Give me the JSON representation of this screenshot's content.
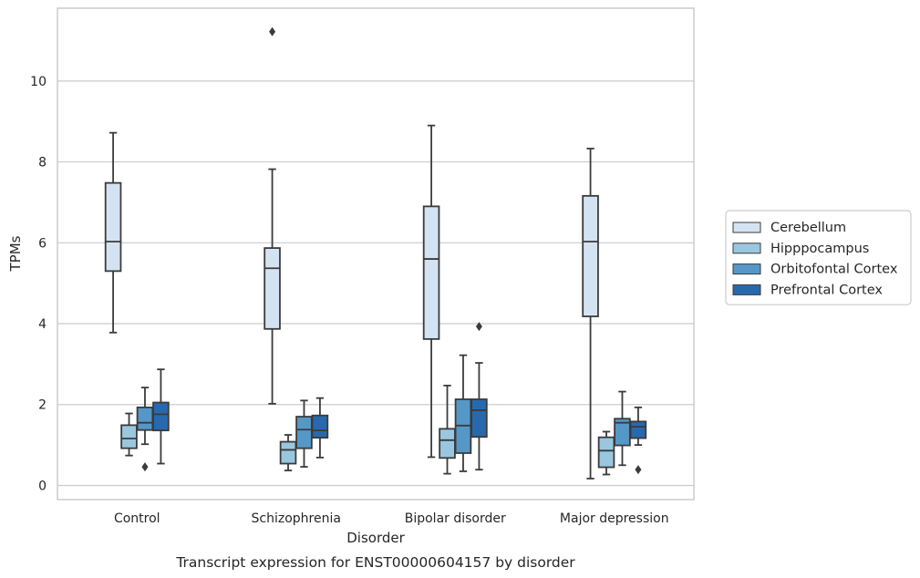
{
  "chart_data": {
    "type": "boxplot",
    "caption": "Transcript expression for ENST00000604157 by disorder",
    "xlabel": "Disorder",
    "ylabel": "TPMs",
    "ylim": [
      -0.35,
      11.8
    ],
    "yticks": [
      0,
      2,
      4,
      6,
      8,
      10
    ],
    "grid": "horizontal",
    "legend_position": "right",
    "categories": [
      "Control",
      "Schizophrenia",
      "Bipolar disorder",
      "Major depression"
    ],
    "series": [
      {
        "name": "Cerebellum",
        "color": "#d4e3f2",
        "boxes": [
          {
            "min": 3.78,
            "q1": 5.3,
            "median": 6.03,
            "q3": 7.48,
            "max": 8.72,
            "outliers": []
          },
          {
            "min": 2.02,
            "q1": 3.87,
            "median": 5.37,
            "q3": 5.87,
            "max": 7.82,
            "outliers": [
              11.22
            ]
          },
          {
            "min": 0.7,
            "q1": 3.62,
            "median": 5.6,
            "q3": 6.9,
            "max": 8.9,
            "outliers": []
          },
          {
            "min": 0.17,
            "q1": 4.18,
            "median": 6.03,
            "q3": 7.16,
            "max": 8.33,
            "outliers": []
          }
        ]
      },
      {
        "name": "Hipppocampus",
        "color": "#9ac7e0",
        "boxes": [
          {
            "min": 0.74,
            "q1": 0.92,
            "median": 1.16,
            "q3": 1.49,
            "max": 1.78,
            "outliers": []
          },
          {
            "min": 0.37,
            "q1": 0.54,
            "median": 0.88,
            "q3": 1.08,
            "max": 1.25,
            "outliers": []
          },
          {
            "min": 0.29,
            "q1": 0.68,
            "median": 1.12,
            "q3": 1.4,
            "max": 2.47,
            "outliers": []
          },
          {
            "min": 0.27,
            "q1": 0.45,
            "median": 0.86,
            "q3": 1.19,
            "max": 1.33,
            "outliers": []
          }
        ]
      },
      {
        "name": "Orbitofontal Cortex",
        "color": "#5598c8",
        "boxes": [
          {
            "min": 1.02,
            "q1": 1.37,
            "median": 1.55,
            "q3": 1.93,
            "max": 2.42,
            "outliers": [
              0.46
            ]
          },
          {
            "min": 0.46,
            "q1": 0.92,
            "median": 1.38,
            "q3": 1.7,
            "max": 2.1,
            "outliers": []
          },
          {
            "min": 0.35,
            "q1": 0.8,
            "median": 1.48,
            "q3": 2.13,
            "max": 3.22,
            "outliers": []
          },
          {
            "min": 0.5,
            "q1": 0.99,
            "median": 1.55,
            "q3": 1.65,
            "max": 2.32,
            "outliers": []
          }
        ]
      },
      {
        "name": "Prefrontal Cortex",
        "color": "#2869ad",
        "boxes": [
          {
            "min": 0.54,
            "q1": 1.36,
            "median": 1.76,
            "q3": 2.05,
            "max": 2.87,
            "outliers": []
          },
          {
            "min": 0.69,
            "q1": 1.18,
            "median": 1.36,
            "q3": 1.73,
            "max": 2.16,
            "outliers": []
          },
          {
            "min": 0.39,
            "q1": 1.2,
            "median": 1.86,
            "q3": 2.13,
            "max": 3.03,
            "outliers": [
              3.93
            ]
          },
          {
            "min": 1.0,
            "q1": 1.17,
            "median": 1.45,
            "q3": 1.58,
            "max": 1.93,
            "outliers": [
              0.39
            ]
          }
        ]
      }
    ]
  }
}
